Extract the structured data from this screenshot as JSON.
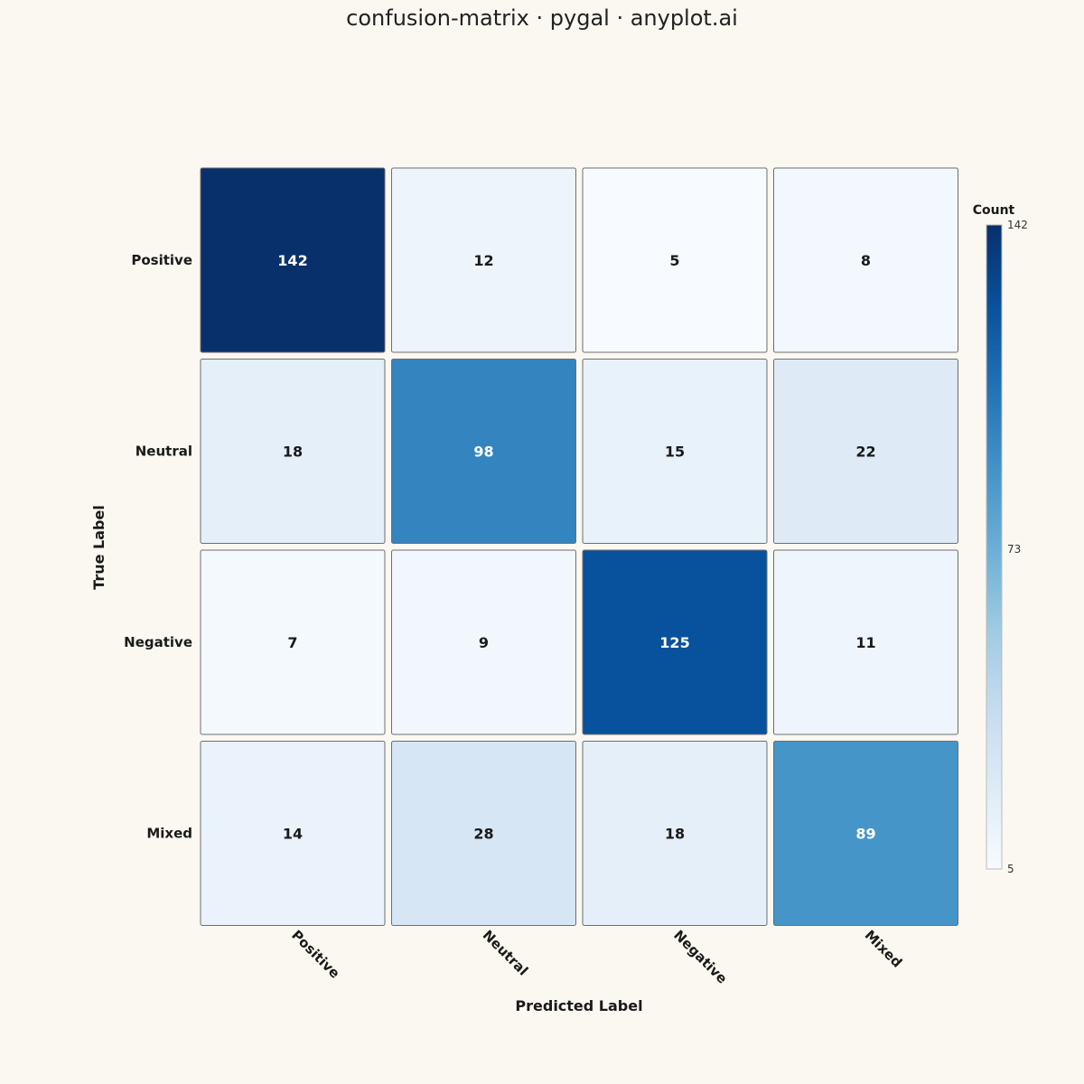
{
  "title": "confusion-matrix · pygal · anyplot.ai",
  "chart_data": {
    "type": "heatmap",
    "title": "confusion-matrix · pygal · anyplot.ai",
    "xlabel": "Predicted Label",
    "ylabel": "True Label",
    "x_categories": [
      "Positive",
      "Neutral",
      "Negative",
      "Mixed"
    ],
    "y_categories": [
      "Positive",
      "Neutral",
      "Negative",
      "Mixed"
    ],
    "values": [
      [
        142,
        12,
        5,
        8
      ],
      [
        18,
        98,
        15,
        22
      ],
      [
        7,
        9,
        125,
        11
      ],
      [
        14,
        28,
        18,
        89
      ]
    ],
    "colorbar": {
      "title": "Count",
      "min": 5,
      "max": 142,
      "ticks": [
        "142",
        "73",
        "5"
      ]
    },
    "colorscale": [
      "#F7FBFF",
      "#DEEBF7",
      "#C6DBEF",
      "#9ECAE1",
      "#6BAED6",
      "#4292C6",
      "#2171B5",
      "#08519C",
      "#08306B"
    ],
    "background_color": "#FAF8F1"
  }
}
